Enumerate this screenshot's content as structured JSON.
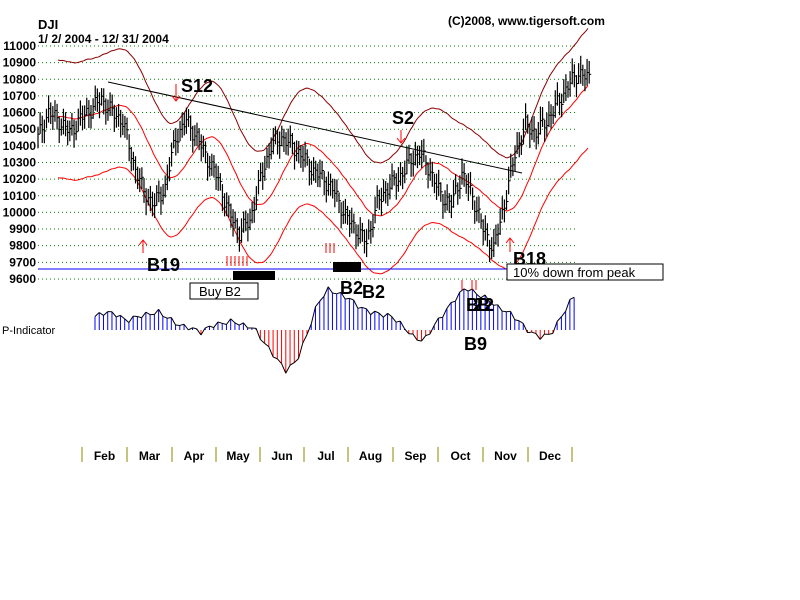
{
  "header": {
    "symbol": "DJI",
    "date_range": "1/ 2/ 2004 - 12/ 31/ 2004",
    "copyright": "(C)2008, www.tigersoft.com"
  },
  "chart_data": {
    "type": "bar",
    "subtype": "ohlc-price-bars-with-bands-and-indicator",
    "title": "DJI",
    "ylim": [
      9600,
      11000
    ],
    "y_ticks": [
      "11000",
      "10900",
      "10800",
      "10700",
      "10600",
      "10500",
      "10400",
      "10300",
      "10200",
      "10100",
      "10000",
      "9900",
      "9800",
      "9700",
      "9600"
    ],
    "grid": true,
    "months": [
      "Feb",
      "Mar",
      "Apr",
      "May",
      "Jun",
      "Jul",
      "Aug",
      "Sep",
      "Oct",
      "Nov",
      "Dec"
    ],
    "weekly_closes": [
      10450,
      10600,
      10550,
      10480,
      10560,
      10620,
      10680,
      10600,
      10550,
      10300,
      10120,
      10050,
      10150,
      10450,
      10550,
      10450,
      10320,
      10200,
      10000,
      9880,
      9950,
      10200,
      10400,
      10450,
      10400,
      10330,
      10250,
      10200,
      10120,
      9980,
      9900,
      9820,
      10050,
      10150,
      10200,
      10300,
      10360,
      10250,
      10100,
      10050,
      10230,
      10100,
      9900,
      9780,
      10050,
      10350,
      10520,
      10480,
      10550,
      10650,
      10760,
      10840,
      10800
    ],
    "p_indicator": [
      30,
      40,
      35,
      20,
      30,
      35,
      40,
      25,
      10,
      5,
      -5,
      10,
      15,
      20,
      10,
      5,
      -30,
      -60,
      -90,
      -70,
      -10,
      60,
      90,
      80,
      70,
      50,
      40,
      35,
      30,
      10,
      -15,
      -25,
      10,
      40,
      70,
      95,
      80,
      70,
      50,
      40,
      20,
      -5,
      -15,
      -10,
      30,
      70,
      95,
      90,
      70,
      45,
      40,
      55,
      40
    ],
    "p_indicator_label": "P-Indicator",
    "trendline": {
      "from": [
        10800,
        "Feb"
      ],
      "to": [
        10250,
        "Nov"
      ]
    },
    "peak_line": {
      "value": 9663,
      "label": "10% down from peak"
    },
    "signals": [
      {
        "label": "S12",
        "type": "sell"
      },
      {
        "label": "S2",
        "type": "sell"
      },
      {
        "label": "B19",
        "type": "buy"
      },
      {
        "label": "Buy B2",
        "type": "buy"
      },
      {
        "label": "B2",
        "type": "buy"
      },
      {
        "label": "B2",
        "type": "buy"
      },
      {
        "label": "B2B2",
        "type": "buy"
      },
      {
        "label": "B9",
        "type": "buy"
      },
      {
        "label": "B18",
        "type": "buy"
      }
    ]
  },
  "colors": {
    "bars": "#000000",
    "upper_band": "#8b0000",
    "bands": "#ff0000",
    "grid": "#008000",
    "peak_line": "#0000ff",
    "p_pos": "#0000ff",
    "p_neg": "#ff0000"
  }
}
